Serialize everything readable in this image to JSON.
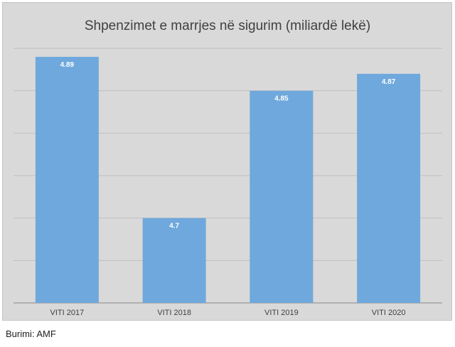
{
  "chart_data": {
    "type": "bar",
    "title": "Shpenzimet e marrjes në sigurim (miliardë lekë)",
    "xlabel": "",
    "ylabel": "",
    "categories": [
      "VITI 2017",
      "VITI 2018",
      "VITI 2019",
      "VITI 2020"
    ],
    "values": [
      4.89,
      4.7,
      4.85,
      4.87
    ],
    "data_labels": [
      "4.89",
      "4.7",
      "4.85",
      "4.87"
    ],
    "ylim": [
      4.6,
      4.9
    ],
    "gridlines": [
      4.6,
      4.65,
      4.7,
      4.75,
      4.8,
      4.85,
      4.9
    ],
    "grid": true,
    "legend": "none",
    "colors": {
      "bar": "#6fa8dc",
      "background": "#d9d9d9",
      "grid": "#bfbfbf",
      "axis": "#8c8c8c"
    }
  },
  "footer": {
    "source": "Burimi: AMF"
  }
}
